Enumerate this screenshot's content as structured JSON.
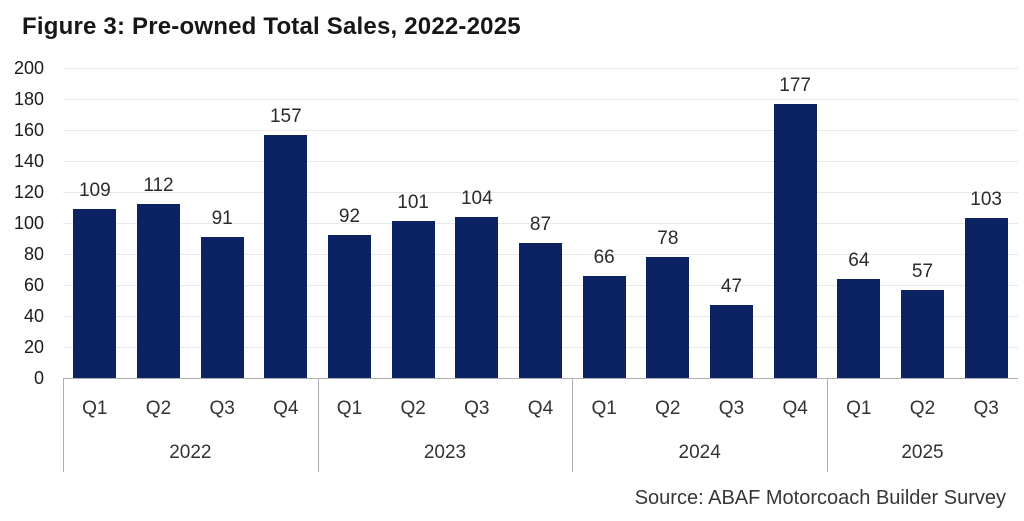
{
  "colors": {
    "bar": "#0c2363",
    "grid": "#e8e8e8",
    "axis": "#aeaeae"
  },
  "chart_data": {
    "type": "bar",
    "title": "Figure 3: Pre-owned Total Sales, 2022-2025",
    "source": "Source: ABAF Motorcoach Builder Survey",
    "xlabel": "",
    "ylabel": "",
    "ylim": [
      0,
      200
    ],
    "ytick_step": 20,
    "grid": true,
    "legend": "none",
    "groups": [
      {
        "year": "2022",
        "categories": [
          "Q1",
          "Q2",
          "Q3",
          "Q4"
        ],
        "values": [
          109,
          112,
          91,
          157
        ]
      },
      {
        "year": "2023",
        "categories": [
          "Q1",
          "Q2",
          "Q3",
          "Q4"
        ],
        "values": [
          92,
          101,
          104,
          87
        ]
      },
      {
        "year": "2024",
        "categories": [
          "Q1",
          "Q2",
          "Q3",
          "Q4"
        ],
        "values": [
          66,
          78,
          47,
          177
        ]
      },
      {
        "year": "2025",
        "categories": [
          "Q1",
          "Q2",
          "Q3"
        ],
        "values": [
          64,
          57,
          103
        ]
      }
    ]
  }
}
